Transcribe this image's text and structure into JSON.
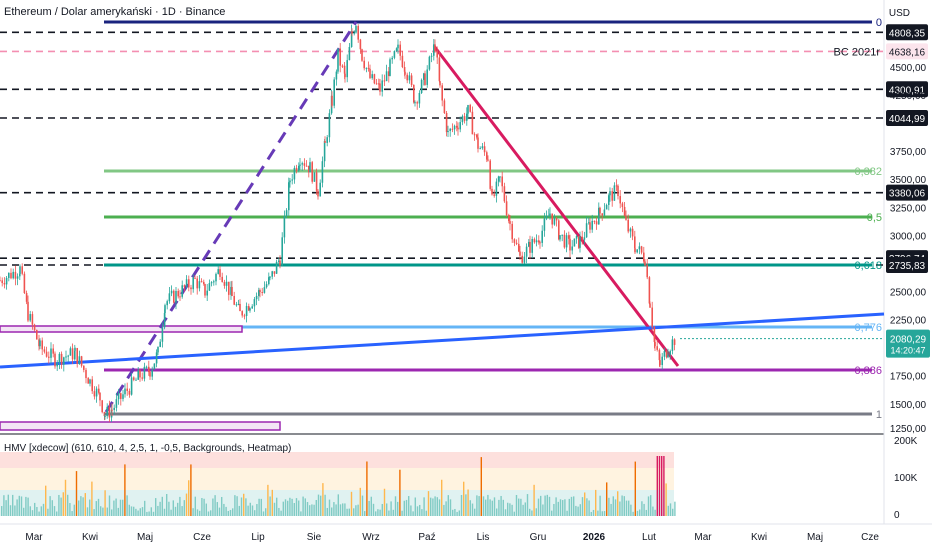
{
  "chart_title": "Ethereum / Dolar amerykański · 1D · Binance",
  "currency_label": "USD",
  "indicator": {
    "label": "HMV [xdecow] (610, 610, 4, 2,5, 1, -0,5, Backgrounds, Heatmap)",
    "ticks": [
      "200K",
      "100K",
      "0"
    ]
  },
  "time_axis": [
    "Mar",
    "Kwi",
    "Maj",
    "Cze",
    "Lip",
    "Sie",
    "Wrz",
    "Paź",
    "Lis",
    "Gru",
    "2026",
    "Lut",
    "Mar",
    "Kwi",
    "Maj",
    "Cze"
  ],
  "price_ticks": [
    "4500,00",
    "4250,00",
    "3750,00",
    "3500,00",
    "3250,00",
    "3000,00",
    "2500,00",
    "2250,00",
    "1750,00",
    "1500,00",
    "1250,00"
  ],
  "current_price": {
    "value": "2080,29",
    "countdown": "14:20:47",
    "color": "#26a69a"
  },
  "chart_data": {
    "type": "candlestick",
    "ylim": [
      1250,
      4900
    ],
    "horizontal_levels": [
      {
        "price": 4808.35,
        "label": "4808,35",
        "style": "dashed",
        "color": "#131722",
        "badge": "dark"
      },
      {
        "price": 4638.16,
        "label": "4638,16",
        "note": "BC 2021r",
        "style": "dashed",
        "color": "#f48fb1",
        "badge": "light"
      },
      {
        "price": 4300.91,
        "label": "4300,91",
        "style": "dashed",
        "color": "#131722",
        "badge": "dark"
      },
      {
        "price": 4044.99,
        "label": "4044,99",
        "style": "dashed",
        "color": "#131722",
        "badge": "dark"
      },
      {
        "price": 3380.06,
        "label": "3380,06",
        "style": "dashed",
        "color": "#131722",
        "badge": "dark"
      },
      {
        "price": 2796.74,
        "label": "2796,74",
        "style": "dashed",
        "color": "#131722",
        "badge": "dark"
      },
      {
        "price": 2735.83,
        "label": "2735,83",
        "style": "dashed",
        "color": "#131722",
        "badge": "dark"
      }
    ],
    "fibonacci": [
      {
        "ratio": "0",
        "color": "#1a237e"
      },
      {
        "ratio": "0,382",
        "color": "#81c784"
      },
      {
        "ratio": "0,5",
        "color": "#4caf50"
      },
      {
        "ratio": "0,618",
        "color": "#009688"
      },
      {
        "ratio": "0,776",
        "color": "#64b5f6"
      },
      {
        "ratio": "0,886",
        "color": "#9c27b0"
      },
      {
        "ratio": "1",
        "color": "#787b86"
      }
    ],
    "price_path": [
      [
        0,
        2600
      ],
      [
        20,
        2700
      ],
      [
        28,
        2300
      ],
      [
        40,
        2000
      ],
      [
        55,
        1900
      ],
      [
        75,
        1950
      ],
      [
        90,
        1700
      ],
      [
        100,
        1550
      ],
      [
        105,
        1400
      ],
      [
        112,
        1450
      ],
      [
        125,
        1600
      ],
      [
        140,
        1750
      ],
      [
        150,
        1800
      ],
      [
        158,
        1950
      ],
      [
        165,
        2400
      ],
      [
        180,
        2500
      ],
      [
        195,
        2600
      ],
      [
        205,
        2500
      ],
      [
        220,
        2700
      ],
      [
        232,
        2450
      ],
      [
        240,
        2300
      ],
      [
        250,
        2400
      ],
      [
        260,
        2500
      ],
      [
        270,
        2600
      ],
      [
        280,
        2800
      ],
      [
        290,
        3500
      ],
      [
        300,
        3700
      ],
      [
        310,
        3600
      ],
      [
        318,
        3400
      ],
      [
        325,
        3800
      ],
      [
        332,
        4200
      ],
      [
        338,
        4600
      ],
      [
        345,
        4400
      ],
      [
        352,
        4800
      ],
      [
        356,
        4900
      ],
      [
        362,
        4600
      ],
      [
        370,
        4400
      ],
      [
        380,
        4300
      ],
      [
        390,
        4500
      ],
      [
        398,
        4650
      ],
      [
        405,
        4500
      ],
      [
        415,
        4200
      ],
      [
        425,
        4400
      ],
      [
        435,
        4700
      ],
      [
        440,
        4300
      ],
      [
        448,
        3900
      ],
      [
        458,
        4000
      ],
      [
        468,
        4100
      ],
      [
        478,
        3800
      ],
      [
        488,
        3700
      ],
      [
        492,
        3300
      ],
      [
        500,
        3500
      ],
      [
        510,
        3100
      ],
      [
        520,
        2800
      ],
      [
        530,
        2900
      ],
      [
        540,
        3000
      ],
      [
        550,
        3200
      ],
      [
        560,
        3000
      ],
      [
        570,
        2900
      ],
      [
        580,
        2950
      ],
      [
        590,
        3100
      ],
      [
        600,
        3200
      ],
      [
        610,
        3350
      ],
      [
        618,
        3400
      ],
      [
        626,
        3100
      ],
      [
        635,
        2900
      ],
      [
        645,
        2800
      ],
      [
        650,
        2400
      ],
      [
        655,
        2000
      ],
      [
        660,
        1850
      ],
      [
        668,
        2000
      ],
      [
        675,
        2080
      ]
    ]
  }
}
